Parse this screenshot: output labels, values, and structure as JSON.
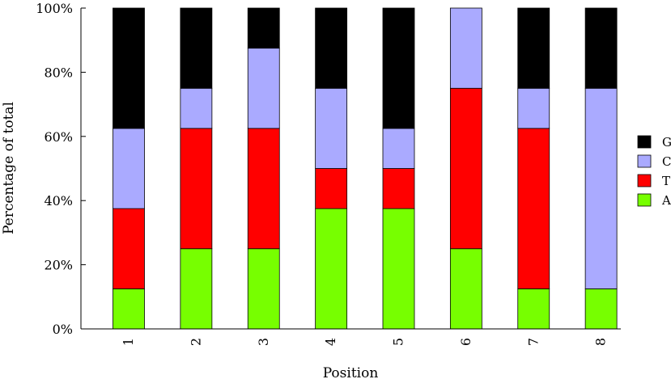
{
  "chart_data": {
    "type": "bar",
    "stacked": true,
    "percent": true,
    "title": "",
    "xlabel": "Position",
    "ylabel": "Percentage of total",
    "ylim": [
      0,
      100
    ],
    "yticks": [
      "0%",
      "20%",
      "40%",
      "60%",
      "80%",
      "100%"
    ],
    "categories": [
      "1",
      "2",
      "3",
      "4",
      "5",
      "6",
      "7",
      "8"
    ],
    "legend_position": "right",
    "series": [
      {
        "name": "A",
        "color": "#77ff00",
        "values": [
          12.5,
          25,
          25,
          37.5,
          37.5,
          25,
          12.5,
          12.5
        ]
      },
      {
        "name": "T",
        "color": "#ff0000",
        "values": [
          25,
          37.5,
          37.5,
          12.5,
          12.5,
          50,
          50,
          0
        ]
      },
      {
        "name": "C",
        "color": "#aaaaff",
        "values": [
          25,
          12.5,
          25,
          25,
          12.5,
          25,
          12.5,
          62.5
        ]
      },
      {
        "name": "G",
        "color": "#000000",
        "values": [
          37.5,
          25,
          12.5,
          25,
          37.5,
          0,
          25,
          25
        ]
      }
    ]
  }
}
